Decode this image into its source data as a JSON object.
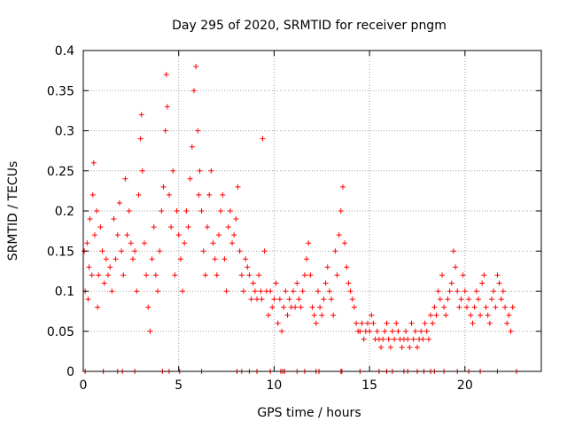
{
  "chart_data": {
    "type": "scatter",
    "title": "Day 295 of 2020, SRMTID for receiver pngm",
    "xlabel": "GPS time / hours",
    "ylabel": "SRMTID / TECUs",
    "xlim": [
      0,
      24
    ],
    "ylim": [
      0,
      0.4
    ],
    "grid": true,
    "marker": "+",
    "marker_color": "#ff0000",
    "x_ticks": [
      {
        "value": 0,
        "label": "0"
      },
      {
        "value": 5,
        "label": "5"
      },
      {
        "value": 10,
        "label": "10"
      },
      {
        "value": 15,
        "label": "15"
      },
      {
        "value": 20,
        "label": "20"
      }
    ],
    "y_ticks": [
      {
        "value": 0,
        "label": "0"
      },
      {
        "value": 0.05,
        "label": "0.05"
      },
      {
        "value": 0.1,
        "label": "0.1"
      },
      {
        "value": 0.15,
        "label": "0.15"
      },
      {
        "value": 0.2,
        "label": "0.2"
      },
      {
        "value": 0.25,
        "label": "0.25"
      },
      {
        "value": 0.3,
        "label": "0.3"
      },
      {
        "value": 0.35,
        "label": "0.35"
      },
      {
        "value": 0.4,
        "label": "0.4"
      }
    ],
    "series": [
      {
        "name": "SRMTID",
        "x": [
          0.05,
          0.1,
          0.2,
          0.25,
          0.3,
          0.35,
          0.45,
          0.5,
          0.55,
          0.6,
          0.7,
          0.75,
          0.8,
          0.9,
          1.0,
          1.1,
          1.2,
          1.3,
          1.4,
          1.5,
          1.6,
          1.7,
          1.8,
          1.9,
          2.0,
          2.1,
          2.2,
          2.3,
          2.4,
          2.5,
          2.6,
          2.7,
          2.8,
          2.9,
          3.0,
          3.05,
          3.1,
          3.2,
          3.3,
          3.4,
          3.5,
          3.6,
          3.7,
          3.8,
          3.9,
          4.0,
          4.1,
          4.2,
          4.3,
          4.35,
          4.4,
          4.5,
          4.6,
          4.7,
          4.8,
          4.9,
          5.0,
          5.1,
          5.2,
          5.3,
          5.4,
          5.5,
          5.6,
          5.7,
          5.8,
          5.9,
          6.0,
          6.05,
          6.1,
          6.2,
          6.3,
          6.4,
          6.5,
          6.6,
          6.7,
          6.8,
          6.9,
          7.0,
          7.1,
          7.2,
          7.3,
          7.4,
          7.5,
          7.6,
          7.7,
          7.8,
          7.9,
          8.0,
          8.1,
          8.2,
          8.3,
          8.4,
          8.5,
          8.6,
          8.7,
          8.8,
          8.9,
          9.0,
          9.1,
          9.2,
          9.3,
          9.35,
          9.4,
          9.5,
          9.6,
          9.7,
          9.8,
          9.9,
          10.0,
          10.1,
          10.2,
          10.3,
          10.4,
          10.5,
          10.6,
          10.7,
          10.8,
          10.9,
          11.0,
          11.1,
          11.2,
          11.3,
          11.4,
          11.5,
          11.6,
          11.7,
          11.8,
          11.9,
          12.0,
          12.1,
          12.2,
          12.3,
          12.4,
          12.5,
          12.6,
          12.7,
          12.8,
          12.9,
          13.0,
          13.1,
          13.2,
          13.3,
          13.4,
          13.5,
          13.6,
          13.7,
          13.8,
          13.9,
          14.0,
          14.1,
          14.2,
          14.3,
          14.4,
          14.5,
          14.6,
          14.7,
          14.8,
          14.9,
          15.0,
          15.1,
          15.2,
          15.3,
          15.4,
          15.5,
          15.6,
          15.7,
          15.8,
          15.9,
          16.0,
          16.1,
          16.2,
          16.3,
          16.4,
          16.5,
          16.6,
          16.7,
          16.8,
          16.9,
          17.0,
          17.1,
          17.2,
          17.3,
          17.4,
          17.5,
          17.6,
          17.7,
          17.8,
          17.9,
          18.0,
          18.1,
          18.2,
          18.3,
          18.4,
          18.5,
          18.6,
          18.7,
          18.8,
          18.9,
          19.0,
          19.1,
          19.2,
          19.3,
          19.4,
          19.5,
          19.6,
          19.7,
          19.8,
          19.9,
          20.0,
          20.1,
          20.2,
          20.3,
          20.4,
          20.5,
          20.6,
          20.7,
          20.8,
          20.9,
          21.0,
          21.1,
          21.2,
          21.3,
          21.4,
          21.5,
          21.6,
          21.7,
          21.8,
          21.9,
          22.0,
          22.1,
          22.2,
          22.3,
          22.4,
          22.5
        ],
        "y": [
          0.15,
          0.1,
          0.16,
          0.09,
          0.13,
          0.19,
          0.12,
          0.22,
          0.26,
          0.17,
          0.2,
          0.08,
          0.12,
          0.18,
          0.15,
          0.11,
          0.14,
          0.12,
          0.13,
          0.1,
          0.19,
          0.14,
          0.17,
          0.21,
          0.15,
          0.12,
          0.24,
          0.17,
          0.2,
          0.16,
          0.14,
          0.15,
          0.1,
          0.22,
          0.29,
          0.32,
          0.25,
          0.16,
          0.12,
          0.08,
          0.05,
          0.14,
          0.18,
          0.12,
          0.1,
          0.15,
          0.2,
          0.23,
          0.3,
          0.37,
          0.33,
          0.22,
          0.18,
          0.25,
          0.12,
          0.2,
          0.17,
          0.14,
          0.1,
          0.16,
          0.2,
          0.18,
          0.24,
          0.28,
          0.35,
          0.38,
          0.3,
          0.22,
          0.25,
          0.2,
          0.15,
          0.12,
          0.18,
          0.22,
          0.25,
          0.16,
          0.14,
          0.12,
          0.17,
          0.2,
          0.22,
          0.14,
          0.1,
          0.18,
          0.2,
          0.16,
          0.17,
          0.19,
          0.23,
          0.15,
          0.12,
          0.1,
          0.14,
          0.13,
          0.12,
          0.09,
          0.11,
          0.1,
          0.09,
          0.12,
          0.1,
          0.09,
          0.29,
          0.15,
          0.1,
          0.07,
          0.1,
          0.08,
          0.09,
          0.11,
          0.06,
          0.09,
          0.05,
          0.08,
          0.1,
          0.07,
          0.09,
          0.08,
          0.1,
          0.08,
          0.11,
          0.09,
          0.08,
          0.1,
          0.12,
          0.14,
          0.16,
          0.12,
          0.08,
          0.07,
          0.06,
          0.1,
          0.08,
          0.07,
          0.09,
          0.11,
          0.13,
          0.1,
          0.09,
          0.07,
          0.15,
          0.12,
          0.17,
          0.2,
          0.23,
          0.16,
          0.13,
          0.11,
          0.1,
          0.09,
          0.08,
          0.06,
          0.05,
          0.05,
          0.06,
          0.04,
          0.05,
          0.06,
          0.05,
          0.07,
          0.06,
          0.04,
          0.05,
          0.04,
          0.03,
          0.04,
          0.05,
          0.06,
          0.04,
          0.03,
          0.05,
          0.04,
          0.06,
          0.05,
          0.04,
          0.03,
          0.04,
          0.05,
          0.04,
          0.03,
          0.06,
          0.04,
          0.05,
          0.03,
          0.04,
          0.05,
          0.04,
          0.06,
          0.05,
          0.04,
          0.07,
          0.06,
          0.08,
          0.07,
          0.1,
          0.09,
          0.12,
          0.08,
          0.07,
          0.09,
          0.1,
          0.11,
          0.15,
          0.13,
          0.1,
          0.08,
          0.09,
          0.12,
          0.1,
          0.08,
          0.09,
          0.07,
          0.06,
          0.08,
          0.1,
          0.09,
          0.07,
          0.11,
          0.12,
          0.08,
          0.07,
          0.06,
          0.09,
          0.1,
          0.08,
          0.12,
          0.11,
          0.09,
          0.1,
          0.08,
          0.06,
          0.07,
          0.05,
          0.08
        ],
        "zero_x": [
          0.1,
          1.05,
          1.8,
          2.05,
          2.7,
          4.15,
          4.5,
          5.05,
          6.2,
          8.05,
          8.3,
          8.7,
          9.1,
          9.8,
          10.35,
          10.45,
          10.55,
          11.2,
          11.6,
          12.2,
          12.35,
          13.5,
          13.55,
          14.5,
          15.5,
          15.9,
          16.2,
          16.8,
          17.0,
          17.5,
          17.85,
          18.2,
          18.4,
          18.9,
          19.6,
          20.2,
          20.8,
          21.7,
          22.7
        ]
      }
    ]
  }
}
